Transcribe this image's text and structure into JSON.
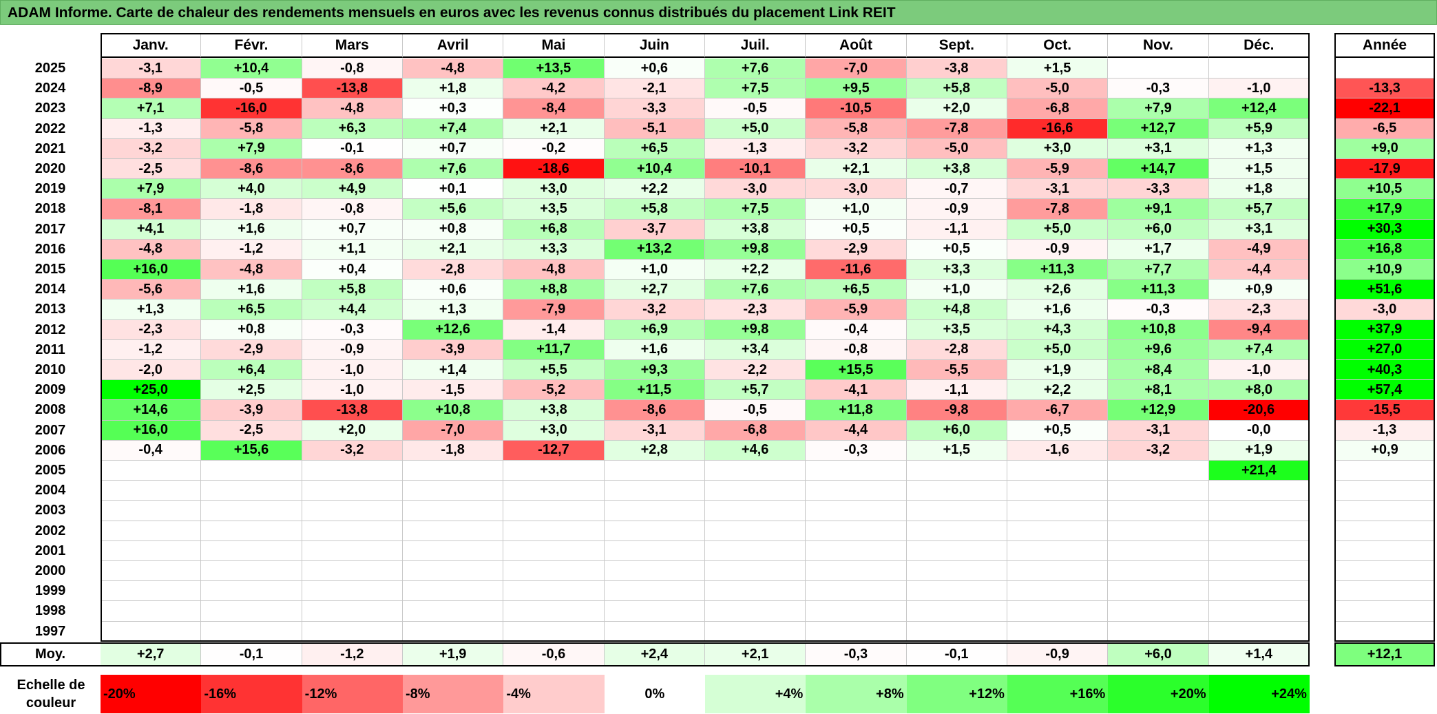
{
  "title": "ADAM Informe. Carte de chaleur des rendements mensuels en euros avec les revenus connus distribués du placement Link REIT",
  "chart_data": {
    "type": "heatmap",
    "months": [
      "Janv.",
      "Févr.",
      "Mars",
      "Avril",
      "Mai",
      "Juin",
      "Juil.",
      "Août",
      "Sept.",
      "Oct.",
      "Nov.",
      "Déc."
    ],
    "year_header": "Année",
    "rows": [
      {
        "year": "2025",
        "values": [
          "-3,1",
          "+10,4",
          "-0,8",
          "-4,8",
          "+13,5",
          "+0,6",
          "+7,6",
          "-7,0",
          "-3,8",
          "+1,5",
          "",
          ""
        ],
        "annual": ""
      },
      {
        "year": "2024",
        "values": [
          "-8,9",
          "-0,5",
          "-13,8",
          "+1,8",
          "-4,2",
          "-2,1",
          "+7,5",
          "+9,5",
          "+5,8",
          "-5,0",
          "-0,3",
          "-1,0"
        ],
        "annual": "-13,3"
      },
      {
        "year": "2023",
        "values": [
          "+7,1",
          "-16,0",
          "-4,8",
          "+0,3",
          "-8,4",
          "-3,3",
          "-0,5",
          "-10,5",
          "+2,0",
          "-6,8",
          "+7,9",
          "+12,4"
        ],
        "annual": "-22,1"
      },
      {
        "year": "2022",
        "values": [
          "-1,3",
          "-5,8",
          "+6,3",
          "+7,4",
          "+2,1",
          "-5,1",
          "+5,0",
          "-5,8",
          "-7,8",
          "-16,6",
          "+12,7",
          "+5,9"
        ],
        "annual": "-6,5"
      },
      {
        "year": "2021",
        "values": [
          "-3,2",
          "+7,9",
          "-0,1",
          "+0,7",
          "-0,2",
          "+6,5",
          "-1,3",
          "-3,2",
          "-5,0",
          "+3,0",
          "+3,1",
          "+1,3"
        ],
        "annual": "+9,0"
      },
      {
        "year": "2020",
        "values": [
          "-2,5",
          "-8,6",
          "-8,6",
          "+7,6",
          "-18,6",
          "+10,4",
          "-10,1",
          "+2,1",
          "+3,8",
          "-5,9",
          "+14,7",
          "+1,5"
        ],
        "annual": "-17,9"
      },
      {
        "year": "2019",
        "values": [
          "+7,9",
          "+4,0",
          "+4,9",
          "+0,1",
          "+3,0",
          "+2,2",
          "-3,0",
          "-3,0",
          "-0,7",
          "-3,1",
          "-3,3",
          "+1,8"
        ],
        "annual": "+10,5"
      },
      {
        "year": "2018",
        "values": [
          "-8,1",
          "-1,8",
          "-0,8",
          "+5,6",
          "+3,5",
          "+5,8",
          "+7,5",
          "+1,0",
          "-0,9",
          "-7,8",
          "+9,1",
          "+5,7"
        ],
        "annual": "+17,9"
      },
      {
        "year": "2017",
        "values": [
          "+4,1",
          "+1,6",
          "+0,7",
          "+0,8",
          "+6,8",
          "-3,7",
          "+3,8",
          "+0,5",
          "-1,1",
          "+5,0",
          "+6,0",
          "+3,1"
        ],
        "annual": "+30,3"
      },
      {
        "year": "2016",
        "values": [
          "-4,8",
          "-1,2",
          "+1,1",
          "+2,1",
          "+3,3",
          "+13,2",
          "+9,8",
          "-2,9",
          "+0,5",
          "-0,9",
          "+1,7",
          "-4,9"
        ],
        "annual": "+16,8"
      },
      {
        "year": "2015",
        "values": [
          "+16,0",
          "-4,8",
          "+0,4",
          "-2,8",
          "-4,8",
          "+1,0",
          "+2,2",
          "-11,6",
          "+3,3",
          "+11,3",
          "+7,7",
          "-4,4"
        ],
        "annual": "+10,9"
      },
      {
        "year": "2014",
        "values": [
          "-5,6",
          "+1,6",
          "+5,8",
          "+0,6",
          "+8,8",
          "+2,7",
          "+7,6",
          "+6,5",
          "+1,0",
          "+2,6",
          "+11,3",
          "+0,9"
        ],
        "annual": "+51,6"
      },
      {
        "year": "2013",
        "values": [
          "+1,3",
          "+6,5",
          "+4,4",
          "+1,3",
          "-7,9",
          "-3,2",
          "-2,3",
          "-5,9",
          "+4,8",
          "+1,6",
          "-0,3",
          "-2,3"
        ],
        "annual": "-3,0"
      },
      {
        "year": "2012",
        "values": [
          "-2,3",
          "+0,8",
          "-0,3",
          "+12,6",
          "-1,4",
          "+6,9",
          "+9,8",
          "-0,4",
          "+3,5",
          "+4,3",
          "+10,8",
          "-9,4"
        ],
        "annual": "+37,9"
      },
      {
        "year": "2011",
        "values": [
          "-1,2",
          "-2,9",
          "-0,9",
          "-3,9",
          "+11,7",
          "+1,6",
          "+3,4",
          "-0,8",
          "-2,8",
          "+5,0",
          "+9,6",
          "+7,4"
        ],
        "annual": "+27,0"
      },
      {
        "year": "2010",
        "values": [
          "-2,0",
          "+6,4",
          "-1,0",
          "+1,4",
          "+5,5",
          "+9,3",
          "-2,2",
          "+15,5",
          "-5,5",
          "+1,9",
          "+8,4",
          "-1,0"
        ],
        "annual": "+40,3"
      },
      {
        "year": "2009",
        "values": [
          "+25,0",
          "+2,5",
          "-1,0",
          "-1,5",
          "-5,2",
          "+11,5",
          "+5,7",
          "-4,1",
          "-1,1",
          "+2,2",
          "+8,1",
          "+8,0"
        ],
        "annual": "+57,4"
      },
      {
        "year": "2008",
        "values": [
          "+14,6",
          "-3,9",
          "-13,8",
          "+10,8",
          "+3,8",
          "-8,6",
          "-0,5",
          "+11,8",
          "-9,8",
          "-6,7",
          "+12,9",
          "-20,6"
        ],
        "annual": "-15,5"
      },
      {
        "year": "2007",
        "values": [
          "+16,0",
          "-2,5",
          "+2,0",
          "-7,0",
          "+3,0",
          "-3,1",
          "-6,8",
          "-4,4",
          "+6,0",
          "+0,5",
          "-3,1",
          "-0,0"
        ],
        "annual": "-1,3"
      },
      {
        "year": "2006",
        "values": [
          "-0,4",
          "+15,6",
          "-3,2",
          "-1,8",
          "-12,7",
          "+2,8",
          "+4,6",
          "-0,3",
          "+1,5",
          "-1,6",
          "-3,2",
          "+1,9"
        ],
        "annual": "+0,9"
      },
      {
        "year": "2005",
        "values": [
          "",
          "",
          "",
          "",
          "",
          "",
          "",
          "",
          "",
          "",
          "",
          "+21,4"
        ],
        "annual": ""
      },
      {
        "year": "2004",
        "values": [
          "",
          "",
          "",
          "",
          "",
          "",
          "",
          "",
          "",
          "",
          "",
          ""
        ],
        "annual": ""
      },
      {
        "year": "2003",
        "values": [
          "",
          "",
          "",
          "",
          "",
          "",
          "",
          "",
          "",
          "",
          "",
          ""
        ],
        "annual": ""
      },
      {
        "year": "2002",
        "values": [
          "",
          "",
          "",
          "",
          "",
          "",
          "",
          "",
          "",
          "",
          "",
          ""
        ],
        "annual": ""
      },
      {
        "year": "2001",
        "values": [
          "",
          "",
          "",
          "",
          "",
          "",
          "",
          "",
          "",
          "",
          "",
          ""
        ],
        "annual": ""
      },
      {
        "year": "2000",
        "values": [
          "",
          "",
          "",
          "",
          "",
          "",
          "",
          "",
          "",
          "",
          "",
          ""
        ],
        "annual": ""
      },
      {
        "year": "1999",
        "values": [
          "",
          "",
          "",
          "",
          "",
          "",
          "",
          "",
          "",
          "",
          "",
          ""
        ],
        "annual": ""
      },
      {
        "year": "1998",
        "values": [
          "",
          "",
          "",
          "",
          "",
          "",
          "",
          "",
          "",
          "",
          "",
          ""
        ],
        "annual": ""
      },
      {
        "year": "1997",
        "values": [
          "",
          "",
          "",
          "",
          "",
          "",
          "",
          "",
          "",
          "",
          "",
          ""
        ],
        "annual": ""
      }
    ],
    "average": {
      "label": "Moy.",
      "values": [
        "+2,7",
        "-0,1",
        "-1,2",
        "+1,9",
        "-0,6",
        "+2,4",
        "+2,1",
        "-0,3",
        "-0,1",
        "-0,9",
        "+6,0",
        "+1,4"
      ],
      "annual": "+12,1"
    },
    "color_scale": {
      "label": "Echelle de couleur",
      "stops": [
        {
          "label": "-20%",
          "value": -20
        },
        {
          "label": "-16%",
          "value": -16
        },
        {
          "label": "-12%",
          "value": -12
        },
        {
          "label": "-8%",
          "value": -8
        },
        {
          "label": "-4%",
          "value": -4
        },
        {
          "label": "0%",
          "value": 0
        },
        {
          "label": "+4%",
          "value": 4
        },
        {
          "label": "+8%",
          "value": 8
        },
        {
          "label": "+12%",
          "value": 12
        },
        {
          "label": "+16%",
          "value": 16
        },
        {
          "label": "+20%",
          "value": 20
        },
        {
          "label": "+24%",
          "value": 24
        }
      ],
      "neg_color": "#ff0000",
      "pos_color": "#00ff00",
      "neutral_color": "#ffffff"
    }
  }
}
